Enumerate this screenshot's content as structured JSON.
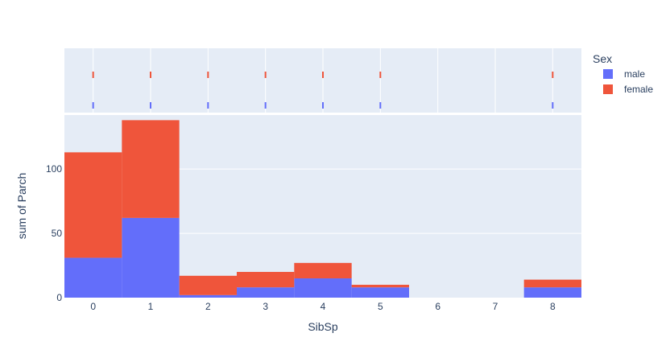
{
  "chart_data": {
    "type": "bar",
    "barmode": "stack",
    "marginal": "rug",
    "x": [
      0,
      1,
      2,
      3,
      4,
      5,
      6,
      7,
      8
    ],
    "xlabel": "SibSp",
    "ylabel": "sum of Parch",
    "ylim": [
      0,
      142
    ],
    "yticks": [
      0,
      50,
      100
    ],
    "legend_title": "Sex",
    "legend_position": "top-right",
    "grid": true,
    "series": [
      {
        "name": "male",
        "color": "#636efa",
        "values": [
          31,
          62,
          2,
          8,
          15,
          8,
          0,
          0,
          8
        ],
        "rug_x": [
          0,
          1,
          2,
          3,
          4,
          5,
          8
        ]
      },
      {
        "name": "female",
        "color": "#ef553b",
        "values": [
          82,
          76,
          15,
          12,
          12,
          2,
          0,
          0,
          6
        ],
        "rug_x": [
          0,
          1,
          2,
          3,
          4,
          5,
          8
        ]
      }
    ],
    "colors": {
      "plot_bg": "#e5ecf6",
      "grid": "#ffffff",
      "text": "#2a3f5f"
    }
  }
}
